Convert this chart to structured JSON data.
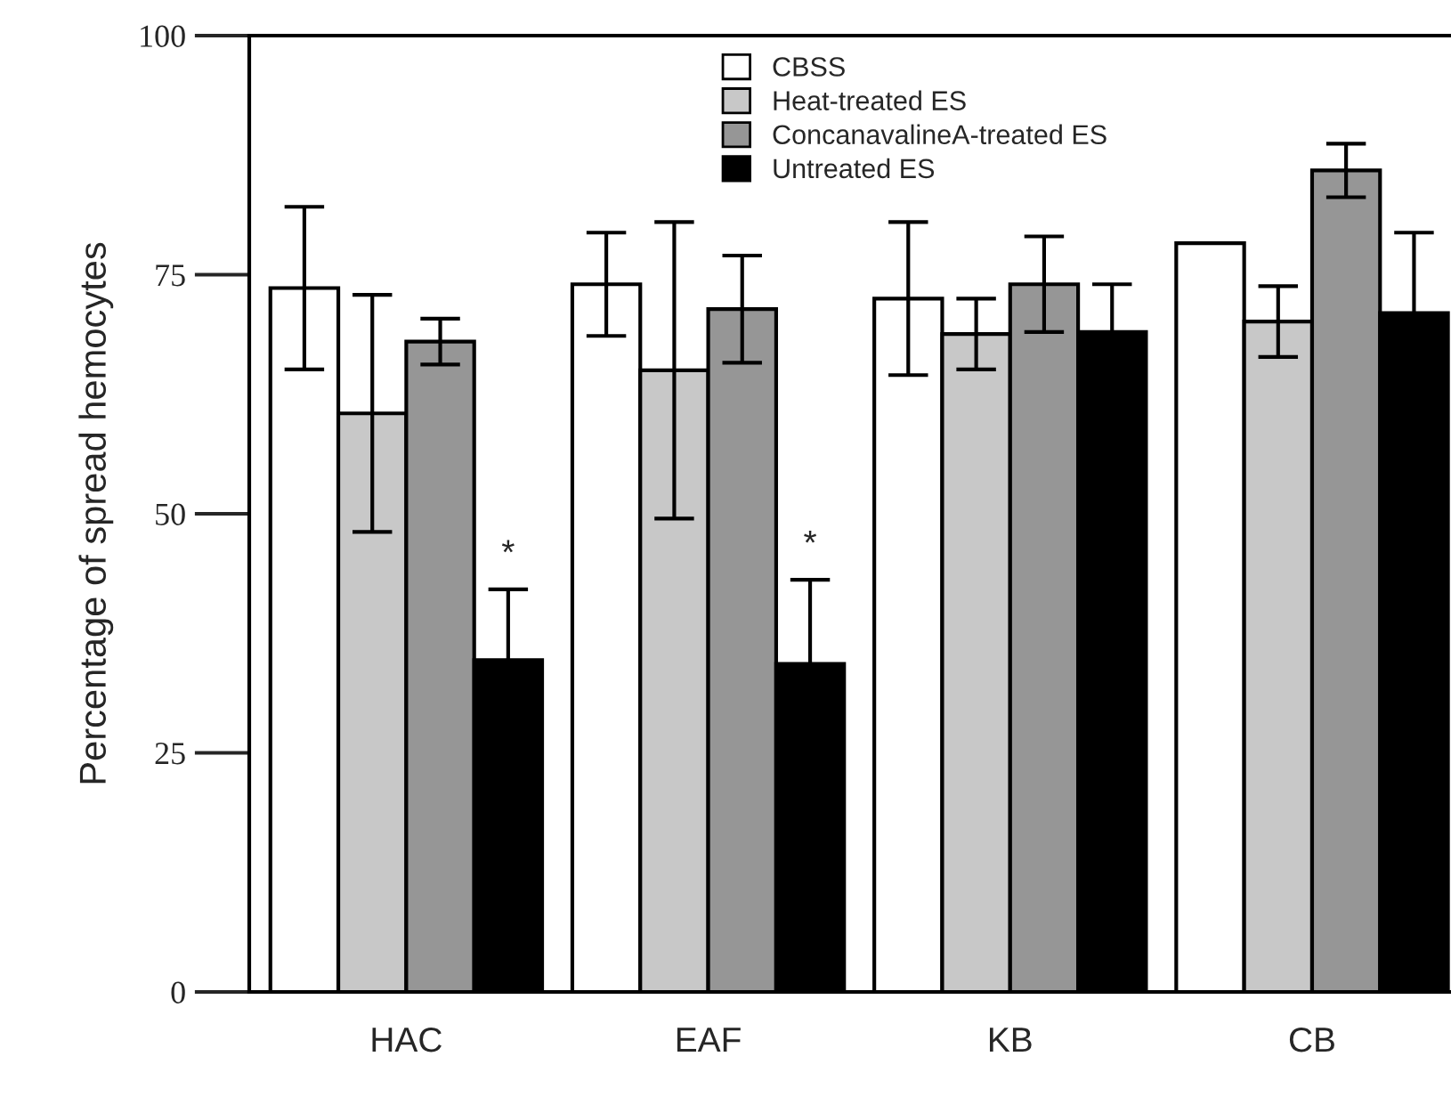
{
  "chart_data": {
    "type": "bar",
    "ylabel": "Percentage of spread hemocytes",
    "categories": [
      "HAC",
      "EAF",
      "KB",
      "CB"
    ],
    "series": [
      {
        "name": "CBSS",
        "color": "#ffffff",
        "values": [
          73.6,
          74.0,
          72.5,
          78.3
        ],
        "errors": [
          8.5,
          5.4,
          8.0,
          null
        ]
      },
      {
        "name": "Heat-treated ES",
        "color": "#c8c8c8",
        "values": [
          60.5,
          65.0,
          68.8,
          70.1
        ],
        "errors": [
          12.4,
          15.5,
          3.7,
          3.7
        ]
      },
      {
        "name": "ConcanavalineA-treated ES",
        "color": "#969696",
        "values": [
          68.0,
          71.4,
          74.0,
          85.9
        ],
        "errors": [
          2.4,
          5.6,
          5.0,
          2.8
        ]
      },
      {
        "name": "Untreated ES",
        "color": "#000000",
        "values": [
          34.7,
          34.3,
          69.0,
          71.0
        ],
        "errors": [
          7.4,
          8.8,
          5.0,
          8.4
        ]
      }
    ],
    "ylim": [
      0,
      100
    ],
    "yticks": [
      0,
      25,
      50,
      75,
      100
    ],
    "annotations": [
      {
        "text": "*",
        "x": "HAC",
        "y": 44
      },
      {
        "text": "*",
        "x": "EAF",
        "y": 45
      }
    ],
    "grid": false,
    "legend": "top right"
  }
}
